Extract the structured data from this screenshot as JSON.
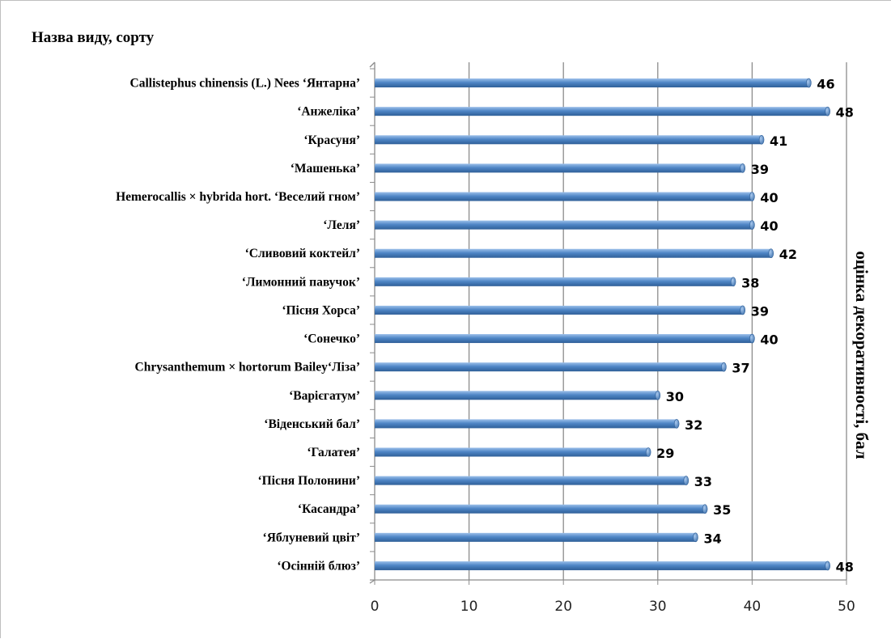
{
  "chart_data": {
    "type": "bar",
    "orientation": "horizontal",
    "title": "Назва виду, сорту",
    "ylabel": "оцінка декоративності, бал",
    "categories": [
      "Callistephus  chinensis  (L.) Nees ‘Янтарна’",
      "‘Анжеліка’",
      "‘Красуня’",
      "‘Машенька’",
      "Hemerocallis × hybrida  hort. ‘Веселий гном’",
      "‘Леля’",
      "‘Сливовий коктейл’",
      "‘Лимонний павучок’",
      "‘Пісня Хорса’",
      "‘Сонечко’",
      "Chrysanthemum  × hortorum  Bailey‘Ліза’",
      "‘Варієгатум’",
      "‘Віденський бал’",
      "‘Галатея’",
      "‘Пісня Полонини’",
      "‘Касандра’",
      "‘Яблуневий цвіт’",
      "‘Осінній блюз’"
    ],
    "values": [
      46,
      48,
      41,
      39,
      40,
      40,
      42,
      38,
      39,
      40,
      37,
      30,
      32,
      29,
      33,
      35,
      34,
      48
    ],
    "xlim": [
      0,
      50
    ],
    "ticks": [
      "0",
      "10",
      "20",
      "30",
      "40",
      "50"
    ],
    "grid": true,
    "bar_color": "#4f86c6"
  }
}
